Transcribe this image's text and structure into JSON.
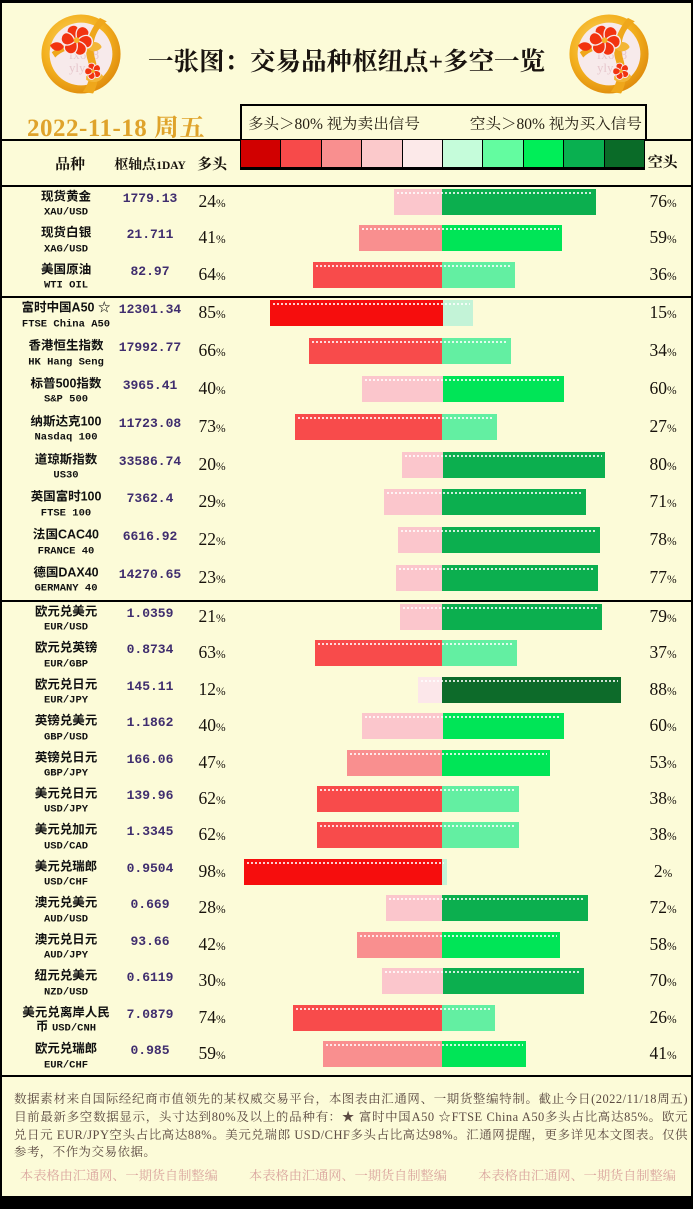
{
  "chart_data": {
    "type": "bar",
    "orientation": "horizontal-diverging",
    "title": "一张图：交易品种枢纽点+多空一览",
    "categories": [
      "XAU/USD",
      "XAG/USD",
      "WTI OIL",
      "FTSE China A50",
      "HK Hang Seng",
      "S&P 500",
      "Nasdaq 100",
      "US30",
      "FTSE 100",
      "FRANCE 40",
      "GERMANY 40",
      "EUR/USD",
      "EUR/GBP",
      "EUR/JPY",
      "GBP/USD",
      "GBP/JPY",
      "USD/JPY",
      "USD/CAD",
      "USD/CHF",
      "AUD/USD",
      "AUD/JPY",
      "NZD/USD",
      "USD/CNH",
      "EUR/CHF"
    ],
    "series": [
      {
        "name": "多头",
        "values": [
          24,
          41,
          64,
          85,
          66,
          40,
          73,
          20,
          29,
          22,
          23,
          21,
          63,
          12,
          40,
          47,
          62,
          62,
          98,
          28,
          42,
          30,
          74,
          59
        ]
      },
      {
        "name": "空头",
        "values": [
          76,
          59,
          36,
          15,
          34,
          60,
          27,
          80,
          71,
          78,
          77,
          79,
          37,
          88,
          60,
          53,
          38,
          38,
          2,
          72,
          58,
          70,
          26,
          41
        ]
      }
    ],
    "pivots": [
      1779.13,
      21.711,
      82.97,
      12301.34,
      17992.77,
      3965.41,
      11723.08,
      33586.74,
      7362.4,
      6616.92,
      14270.65,
      1.0359,
      0.8734,
      145.11,
      1.1862,
      166.06,
      139.96,
      1.3345,
      0.9504,
      0.669,
      93.66,
      0.6119,
      7.0879,
      0.985
    ],
    "value_range": [
      0,
      100
    ]
  },
  "title": "一张图：交易品种枢纽点+多空一览",
  "date": "2022-11-18 周五",
  "legend": {
    "long_note": "多头＞80% 视为卖出信号",
    "short_note": "空头＞80% 视为买入信号",
    "cells": [
      "#D10000",
      "#F74A4A",
      "#F98F8F",
      "#FBC9CB",
      "#FCE9E9",
      "#C5FCDA",
      "#63FCA0",
      "#00EE58",
      "#09B050",
      "#0A6B28"
    ]
  },
  "scales": {
    "bar_red": [
      "#F60D0D",
      "#F84B4B",
      "#F98F8F",
      "#FBC6CC",
      "#FCE7EA"
    ],
    "bar_green": [
      "#C3F3D7",
      "#63EFA2",
      "#00E557",
      "#0CAF4F",
      "#0D6B2A"
    ]
  },
  "headers": {
    "instrument": "品种",
    "pivot": "枢轴点",
    "pivot_period": "1DAY",
    "long": "多头",
    "short": "空头"
  },
  "groups": [
    {
      "rows": [
        {
          "name": "现货黄金",
          "symbol": "XAU/USD",
          "pivot": "1779.13",
          "long": 24,
          "short": 76
        },
        {
          "name": "现货白银",
          "symbol": "XAG/USD",
          "pivot": "21.711",
          "long": 41,
          "short": 59
        },
        {
          "name": "美国原油",
          "symbol": "WTI OIL",
          "pivot": "82.97",
          "long": 64,
          "short": 36
        }
      ]
    },
    {
      "rows": [
        {
          "name": "富时中国A50 ☆",
          "symbol": "FTSE China A50",
          "pivot": "12301.34",
          "long": 85,
          "short": 15
        },
        {
          "name": "香港恒生指数",
          "symbol": "HK Hang Seng",
          "pivot": "17992.77",
          "long": 66,
          "short": 34
        },
        {
          "name": "标普500指数",
          "symbol": "S&P 500",
          "pivot": "3965.41",
          "long": 40,
          "short": 60
        },
        {
          "name": "纳斯达克100",
          "symbol": "Nasdaq 100",
          "pivot": "11723.08",
          "long": 73,
          "short": 27
        },
        {
          "name": "道琼斯指数",
          "symbol": "US30",
          "pivot": "33586.74",
          "long": 20,
          "short": 80
        },
        {
          "name": "英国富时100",
          "symbol": "FTSE 100",
          "pivot": "7362.4",
          "long": 29,
          "short": 71
        },
        {
          "name": "法国CAC40",
          "symbol": "FRANCE 40",
          "pivot": "6616.92",
          "long": 22,
          "short": 78
        },
        {
          "name": "德国DAX40",
          "symbol": "GERMANY 40",
          "pivot": "14270.65",
          "long": 23,
          "short": 77
        }
      ]
    },
    {
      "rows": [
        {
          "name": "欧元兑美元",
          "symbol": "EUR/USD",
          "pivot": "1.0359",
          "long": 21,
          "short": 79
        },
        {
          "name": "欧元兑英镑",
          "symbol": "EUR/GBP",
          "pivot": "0.8734",
          "long": 63,
          "short": 37
        },
        {
          "name": "欧元兑日元",
          "symbol": "EUR/JPY",
          "pivot": "145.11",
          "long": 12,
          "short": 88
        },
        {
          "name": "英镑兑美元",
          "symbol": "GBP/USD",
          "pivot": "1.1862",
          "long": 40,
          "short": 60
        },
        {
          "name": "英镑兑日元",
          "symbol": "GBP/JPY",
          "pivot": "166.06",
          "long": 47,
          "short": 53
        },
        {
          "name": "美元兑日元",
          "symbol": "USD/JPY",
          "pivot": "139.96",
          "long": 62,
          "short": 38
        },
        {
          "name": "美元兑加元",
          "symbol": "USD/CAD",
          "pivot": "1.3345",
          "long": 62,
          "short": 38
        },
        {
          "name": "美元兑瑞郎",
          "symbol": "USD/CHF",
          "pivot": "0.9504",
          "long": 98,
          "short": 2
        },
        {
          "name": "澳元兑美元",
          "symbol": "AUD/USD",
          "pivot": "0.669",
          "long": 28,
          "short": 72
        },
        {
          "name": "澳元兑日元",
          "symbol": "AUD/JPY",
          "pivot": "93.66",
          "long": 42,
          "short": 58
        },
        {
          "name": "纽元兑美元",
          "symbol": "NZD/USD",
          "pivot": "0.6119",
          "long": 30,
          "short": 70
        },
        {
          "name": "美元兑离岸人民币",
          "symbol": "USD/CNH",
          "pivot": "7.0879",
          "long": 74,
          "short": 26
        },
        {
          "name": "欧元兑瑞郎",
          "symbol": "EUR/CHF",
          "pivot": "0.985",
          "long": 59,
          "short": 41
        }
      ]
    }
  ],
  "note": "数据素材来自国际经纪商市值领先的某权威交易平台，本图表由汇通网、一期货整编特制。截止今日(2022/11/18周五)目前最新多空数据显示，头寸达到80%及以上的品种有：★ 富时中国A50 ☆FTSE China A50多头占比高达85%。欧元兑日元 EUR/JPY空头占比高达88%。美元兑瑞郎 USD/CHF多头占比高达98%。汇通网提醒，更多详见本文图表。仅供参考，不作为交易依据。",
  "footer_credit": "本表格由汇通网、一期货自制整编",
  "logo": {
    "watermark": "fx678\nyly"
  },
  "colors": {
    "background": "#FCFBD8",
    "title_text": "#1A1410",
    "date_text": "#DFA32B",
    "pivot_text": "#3F2D6E",
    "note_text": "#5C4B42",
    "footer_text": "#DBA8A0"
  }
}
